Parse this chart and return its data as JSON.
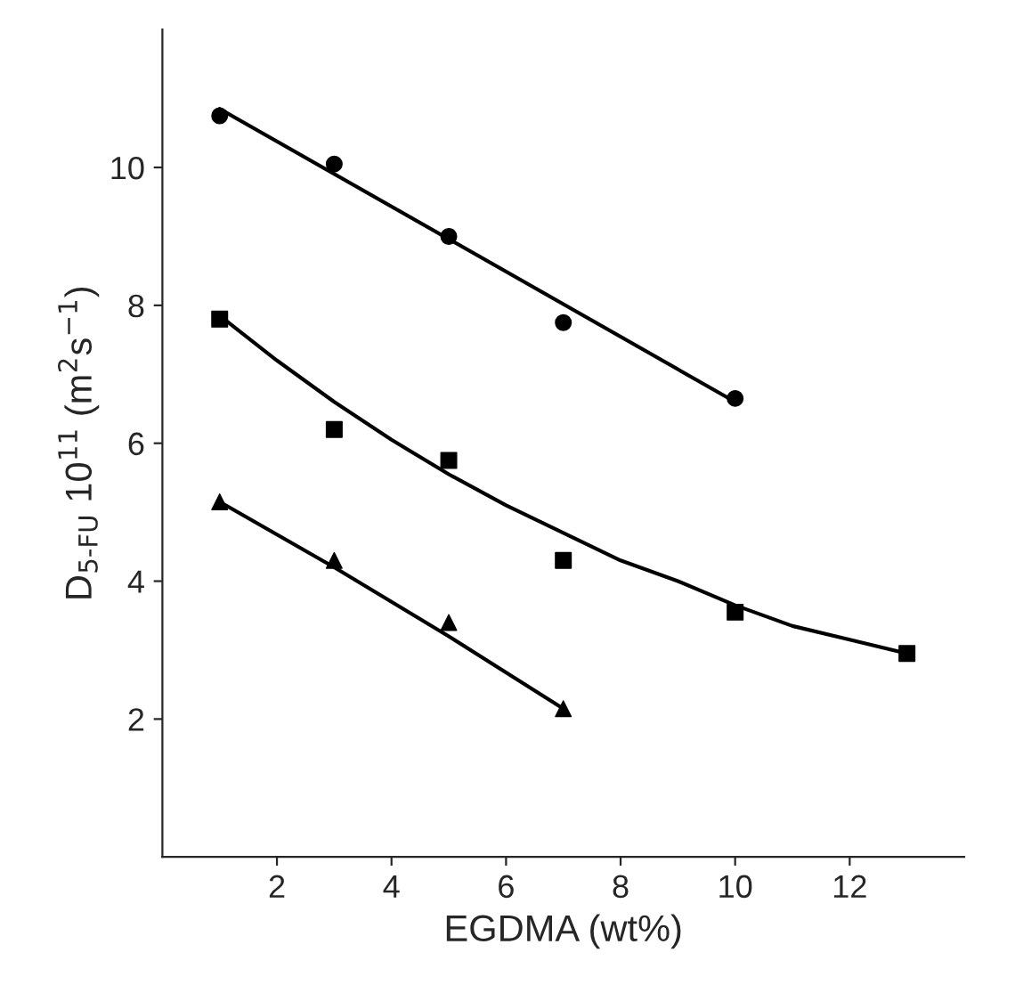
{
  "chart_data": {
    "type": "scatter",
    "xlabel": "EGDMA (wt%)",
    "ylabel": "D$_{5-FU}$ 10$^{11}$ (m$^{2}$s$^{−1}$)",
    "xlim": [
      0,
      14
    ],
    "ylim": [
      0,
      12
    ],
    "xticks": [
      2,
      4,
      6,
      8,
      10,
      12
    ],
    "yticks": [
      2,
      4,
      6,
      8,
      10
    ],
    "grid": false,
    "legend": false,
    "series": [
      {
        "marker": "circle",
        "color": "#000000",
        "x": [
          1,
          3,
          5,
          7,
          10
        ],
        "values": [
          10.75,
          10.05,
          9.0,
          7.75,
          6.65
        ]
      },
      {
        "marker": "square",
        "color": "#000000",
        "x": [
          1,
          3,
          5,
          7,
          10,
          13
        ],
        "values": [
          7.8,
          6.2,
          5.75,
          4.3,
          3.55,
          2.95
        ]
      },
      {
        "marker": "triangle",
        "color": "#000000",
        "x": [
          1,
          3,
          5,
          7
        ],
        "values": [
          5.15,
          4.3,
          3.4,
          2.15
        ]
      },
      {
        "type": "line",
        "marker": "none",
        "color": "#000000",
        "x": [
          1,
          10
        ],
        "values": [
          10.85,
          6.6
        ]
      },
      {
        "type": "line",
        "marker": "none",
        "color": "#000000",
        "x": [
          1,
          2,
          3,
          4,
          5,
          6,
          7,
          8,
          9,
          10,
          11,
          12,
          13
        ],
        "values": [
          7.85,
          7.2,
          6.6,
          6.05,
          5.55,
          5.1,
          4.7,
          4.3,
          4.0,
          3.65,
          3.35,
          3.15,
          2.95
        ]
      },
      {
        "type": "line",
        "marker": "none",
        "color": "#000000",
        "x": [
          1,
          3,
          5,
          7
        ],
        "values": [
          5.15,
          4.2,
          3.2,
          2.15
        ]
      }
    ]
  }
}
